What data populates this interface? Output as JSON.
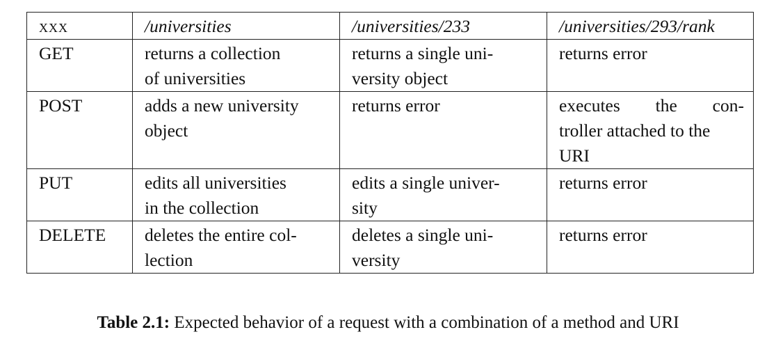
{
  "table": {
    "header": [
      "xxx",
      "/universities",
      "/universities/233",
      "/universities/293/rank"
    ],
    "rows": [
      {
        "method": "GET",
        "cells": [
          [
            "returns a collection",
            "of universities"
          ],
          [
            "returns a single uni-",
            "versity object"
          ],
          [
            "returns error"
          ]
        ]
      },
      {
        "method": "POST",
        "cells": [
          [
            "adds a new university",
            "object"
          ],
          [
            "returns error"
          ],
          [
            "executes the con-",
            "troller attached to the",
            "URI"
          ]
        ]
      },
      {
        "method": "PUT",
        "cells": [
          [
            "edits all universities",
            "in the collection"
          ],
          [
            "edits a single univer-",
            "sity"
          ],
          [
            "returns error"
          ]
        ]
      },
      {
        "method": "DELETE",
        "cells": [
          [
            "deletes the entire col-",
            "lection"
          ],
          [
            "deletes a single uni-",
            "versity"
          ],
          [
            "returns error"
          ]
        ]
      }
    ]
  },
  "caption": {
    "label": "Table 2.1:",
    "text": "Expected behavior of a request with a combination of a method and URI"
  }
}
